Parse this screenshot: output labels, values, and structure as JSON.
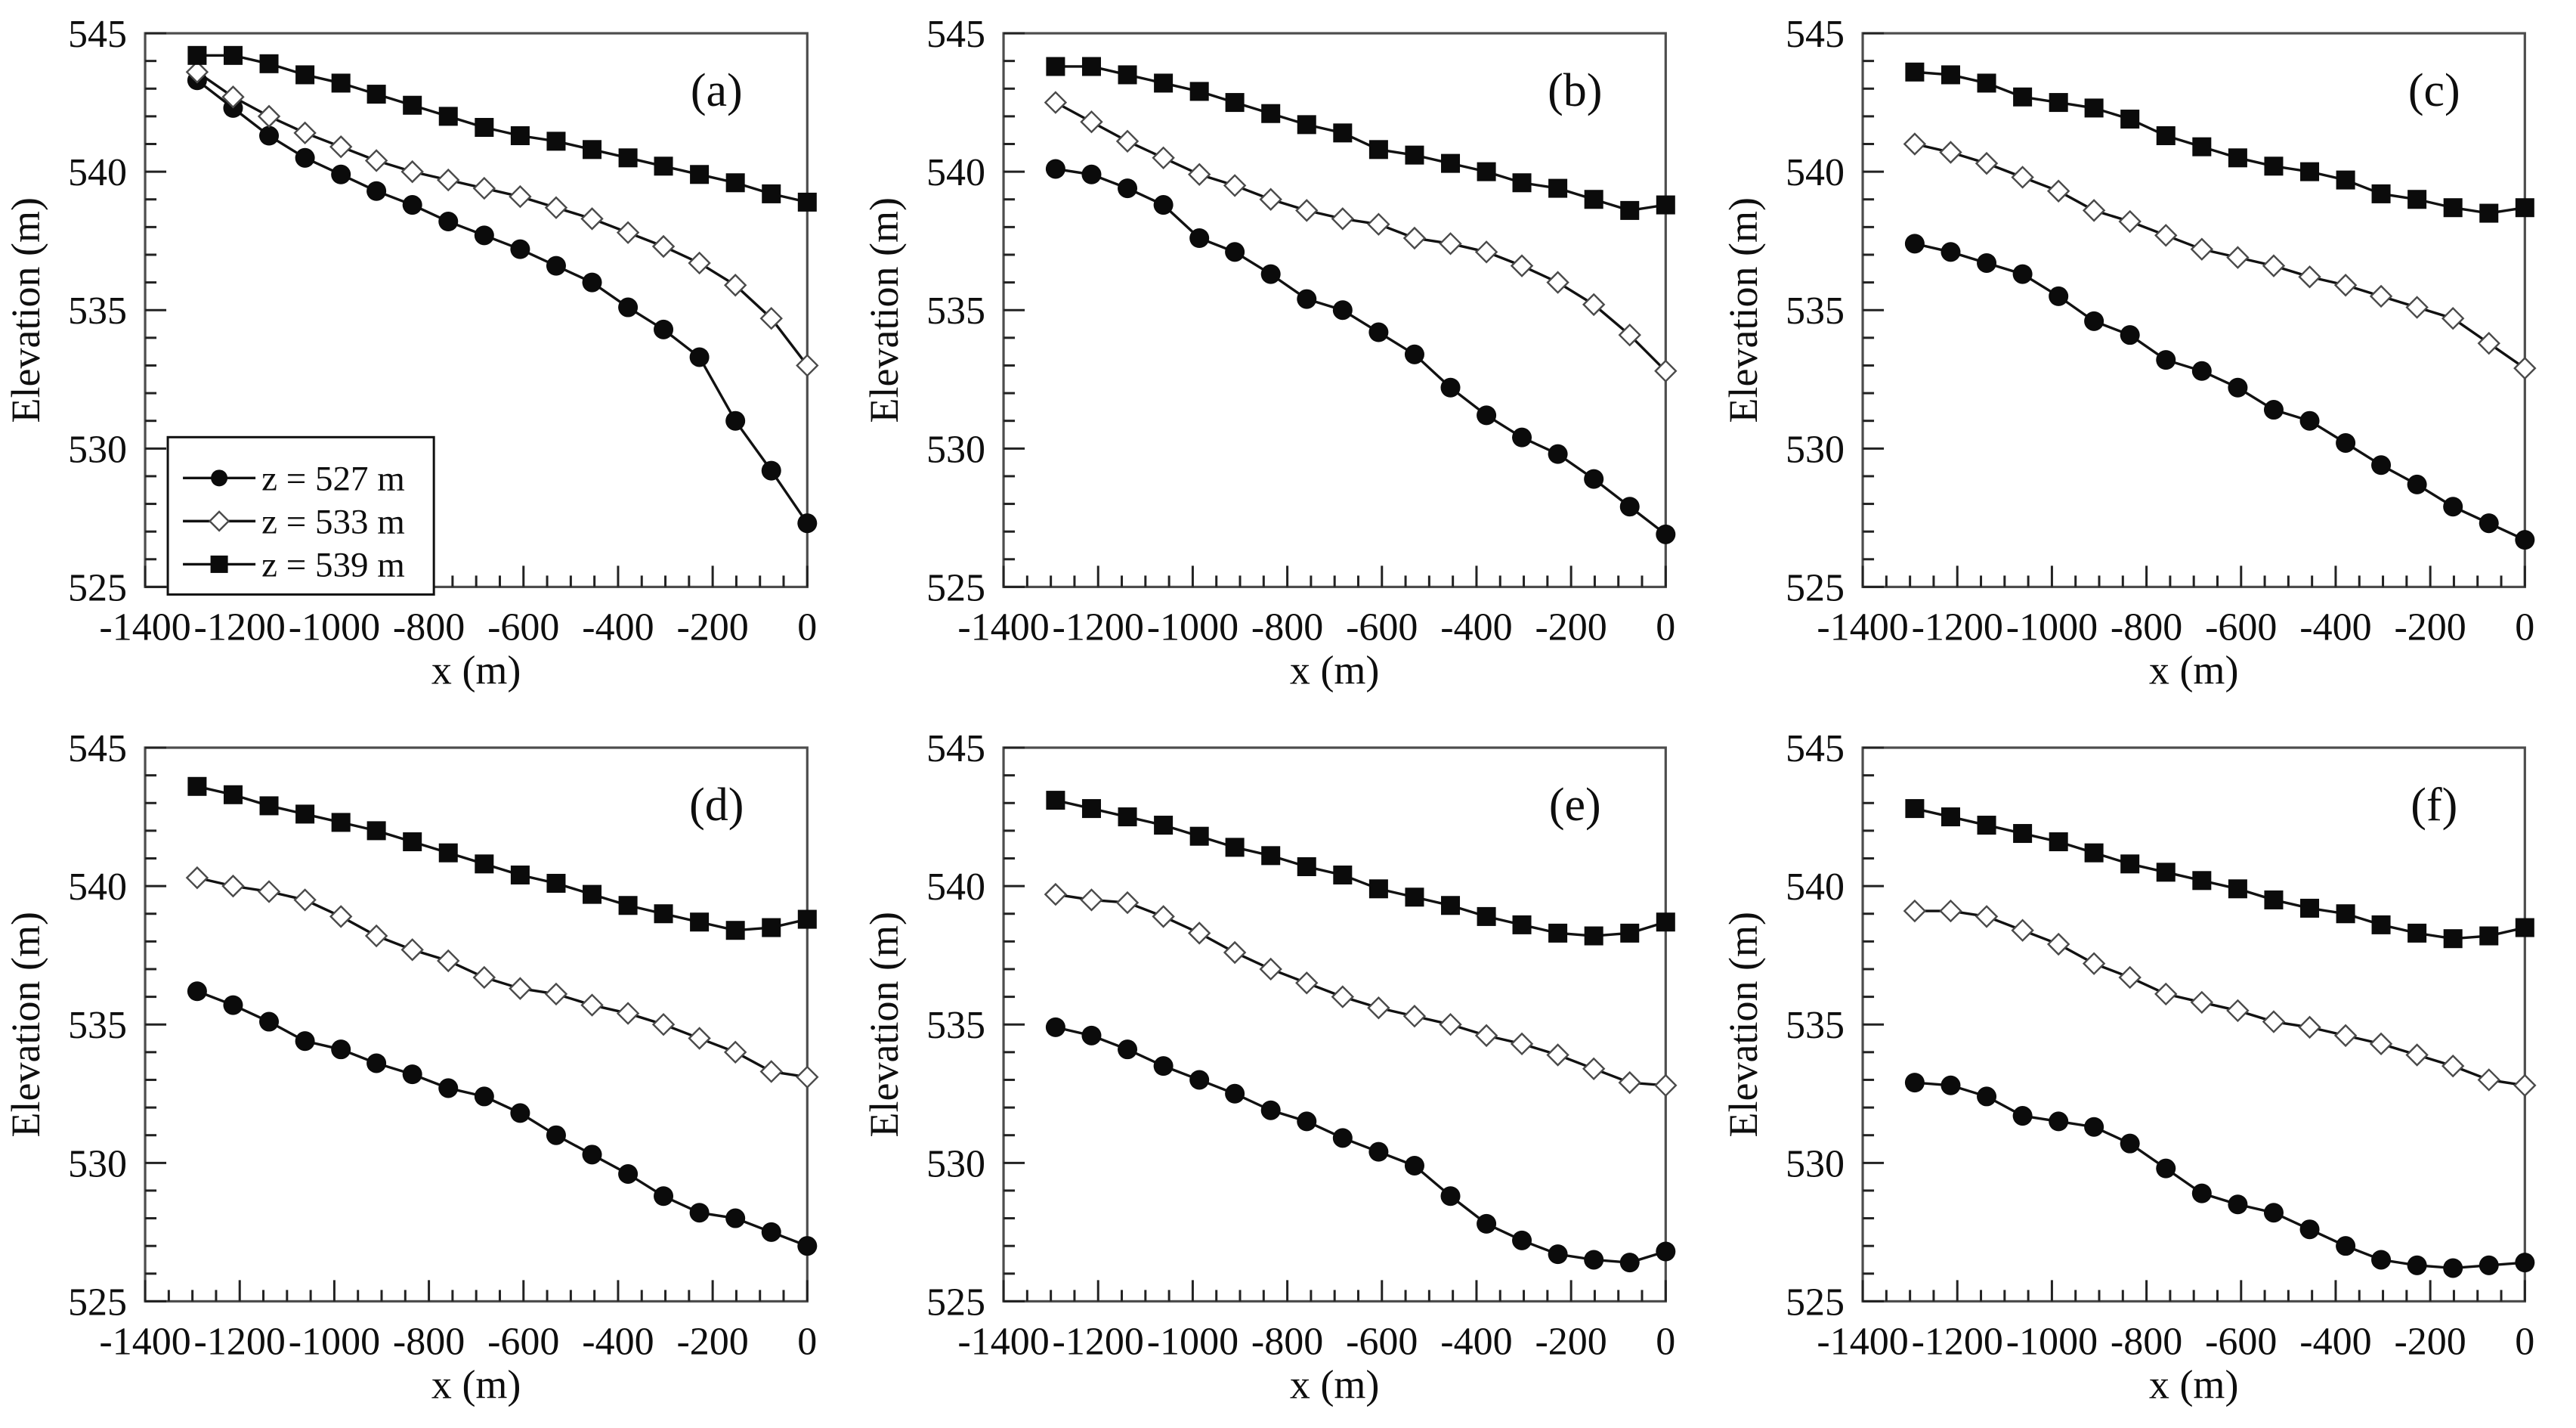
{
  "figure": {
    "xlabel": "x (m)",
    "ylabel": "Elevation (m)",
    "x_range": [
      -1400,
      0
    ],
    "y_range": [
      525,
      545
    ],
    "x_ticks": [
      -1400,
      -1200,
      -1000,
      -800,
      -600,
      -400,
      -200,
      0
    ],
    "y_ticks": [
      525,
      530,
      535,
      540,
      545
    ],
    "x_minor_step": 50,
    "y_minor_step": 1,
    "grid": "off",
    "legend_position": "lower-left of panel (a) only",
    "line_color": "#111111",
    "marker_fill": "#0b0b0b",
    "diamond_stroke": "#4a4a4a",
    "frame_color": "#4d4d4d",
    "legend": [
      {
        "label": "z = 527 m",
        "marker": "circle"
      },
      {
        "label": "z = 533 m",
        "marker": "diamond"
      },
      {
        "label": "z = 539 m",
        "marker": "square"
      }
    ]
  },
  "chart_data": [
    {
      "type": "line",
      "panel_label": "(a)",
      "show_legend": true,
      "x": [
        -1290,
        -1214,
        -1138,
        -1062,
        -986,
        -911,
        -835,
        -759,
        -683,
        -607,
        -531,
        -455,
        -379,
        -304,
        -228,
        -152,
        -76,
        0
      ],
      "series": [
        {
          "name": "z = 527 m",
          "marker": "circle",
          "values": [
            543.3,
            542.3,
            541.3,
            540.5,
            539.9,
            539.3,
            538.8,
            538.2,
            537.7,
            537.2,
            536.6,
            536.0,
            535.1,
            534.3,
            533.3,
            531.0,
            529.2,
            527.3
          ]
        },
        {
          "name": "z = 533 m",
          "marker": "diamond",
          "values": [
            543.6,
            542.7,
            542.0,
            541.4,
            540.9,
            540.4,
            540.0,
            539.7,
            539.4,
            539.1,
            538.7,
            538.3,
            537.8,
            537.3,
            536.7,
            535.9,
            534.7,
            533.0
          ]
        },
        {
          "name": "z = 539 m",
          "marker": "square",
          "values": [
            544.2,
            544.2,
            543.9,
            543.5,
            543.2,
            542.8,
            542.4,
            542.0,
            541.6,
            541.3,
            541.1,
            540.8,
            540.5,
            540.2,
            539.9,
            539.6,
            539.2,
            538.9
          ]
        }
      ]
    },
    {
      "type": "line",
      "panel_label": "(b)",
      "show_legend": false,
      "x": [
        -1290,
        -1214,
        -1138,
        -1062,
        -986,
        -911,
        -835,
        -759,
        -683,
        -607,
        -531,
        -455,
        -379,
        -304,
        -228,
        -152,
        -76,
        0
      ],
      "series": [
        {
          "name": "z = 527 m",
          "marker": "circle",
          "values": [
            540.1,
            539.9,
            539.4,
            538.8,
            537.6,
            537.1,
            536.3,
            535.4,
            535.0,
            534.2,
            533.4,
            532.2,
            531.2,
            530.4,
            529.8,
            528.9,
            527.9,
            526.9
          ]
        },
        {
          "name": "z = 533 m",
          "marker": "diamond",
          "values": [
            542.5,
            541.8,
            541.1,
            540.5,
            539.9,
            539.5,
            539.0,
            538.6,
            538.3,
            538.1,
            537.6,
            537.4,
            537.1,
            536.6,
            536.0,
            535.2,
            534.1,
            532.8
          ]
        },
        {
          "name": "z = 539 m",
          "marker": "square",
          "values": [
            543.8,
            543.8,
            543.5,
            543.2,
            542.9,
            542.5,
            542.1,
            541.7,
            541.4,
            540.8,
            540.6,
            540.3,
            540.0,
            539.6,
            539.4,
            539.0,
            538.6,
            538.8
          ]
        }
      ]
    },
    {
      "type": "line",
      "panel_label": "(c)",
      "show_legend": false,
      "x": [
        -1290,
        -1214,
        -1138,
        -1062,
        -986,
        -911,
        -835,
        -759,
        -683,
        -607,
        -531,
        -455,
        -379,
        -304,
        -228,
        -152,
        -76,
        0
      ],
      "series": [
        {
          "name": "z = 527 m",
          "marker": "circle",
          "values": [
            537.4,
            537.1,
            536.7,
            536.3,
            535.5,
            534.6,
            534.1,
            533.2,
            532.8,
            532.2,
            531.4,
            531.0,
            530.2,
            529.4,
            528.7,
            527.9,
            527.3,
            526.7
          ]
        },
        {
          "name": "z = 533 m",
          "marker": "diamond",
          "values": [
            541.0,
            540.7,
            540.3,
            539.8,
            539.3,
            538.6,
            538.2,
            537.7,
            537.2,
            536.9,
            536.6,
            536.2,
            535.9,
            535.5,
            535.1,
            534.7,
            533.8,
            532.9
          ]
        },
        {
          "name": "z = 539 m",
          "marker": "square",
          "values": [
            543.6,
            543.5,
            543.2,
            542.7,
            542.5,
            542.3,
            541.9,
            541.3,
            540.9,
            540.5,
            540.2,
            540.0,
            539.7,
            539.2,
            539.0,
            538.7,
            538.5,
            538.7
          ]
        }
      ]
    },
    {
      "type": "line",
      "panel_label": "(d)",
      "show_legend": false,
      "x": [
        -1290,
        -1214,
        -1138,
        -1062,
        -986,
        -911,
        -835,
        -759,
        -683,
        -607,
        -531,
        -455,
        -379,
        -304,
        -228,
        -152,
        -76,
        0
      ],
      "series": [
        {
          "name": "z = 527 m",
          "marker": "circle",
          "values": [
            536.2,
            535.7,
            535.1,
            534.4,
            534.1,
            533.6,
            533.2,
            532.7,
            532.4,
            531.8,
            531.0,
            530.3,
            529.6,
            528.8,
            528.2,
            528.0,
            527.5,
            527.0
          ]
        },
        {
          "name": "z = 533 m",
          "marker": "diamond",
          "values": [
            540.3,
            540.0,
            539.8,
            539.5,
            538.9,
            538.2,
            537.7,
            537.3,
            536.7,
            536.3,
            536.1,
            535.7,
            535.4,
            535.0,
            534.5,
            534.0,
            533.3,
            533.1
          ]
        },
        {
          "name": "z = 539 m",
          "marker": "square",
          "values": [
            543.6,
            543.3,
            542.9,
            542.6,
            542.3,
            542.0,
            541.6,
            541.2,
            540.8,
            540.4,
            540.1,
            539.7,
            539.3,
            539.0,
            538.7,
            538.4,
            538.5,
            538.8
          ]
        }
      ]
    },
    {
      "type": "line",
      "panel_label": "(e)",
      "show_legend": false,
      "x": [
        -1290,
        -1214,
        -1138,
        -1062,
        -986,
        -911,
        -835,
        -759,
        -683,
        -607,
        -531,
        -455,
        -379,
        -304,
        -228,
        -152,
        -76,
        0
      ],
      "series": [
        {
          "name": "z = 527 m",
          "marker": "circle",
          "values": [
            534.9,
            534.6,
            534.1,
            533.5,
            533.0,
            532.5,
            531.9,
            531.5,
            530.9,
            530.4,
            529.9,
            528.8,
            527.8,
            527.2,
            526.7,
            526.5,
            526.4,
            526.8
          ]
        },
        {
          "name": "z = 533 m",
          "marker": "diamond",
          "values": [
            539.7,
            539.5,
            539.4,
            538.9,
            538.3,
            537.6,
            537.0,
            536.5,
            536.0,
            535.6,
            535.3,
            535.0,
            534.6,
            534.3,
            533.9,
            533.4,
            532.9,
            532.8
          ]
        },
        {
          "name": "z = 539 m",
          "marker": "square",
          "values": [
            543.1,
            542.8,
            542.5,
            542.2,
            541.8,
            541.4,
            541.1,
            540.7,
            540.4,
            539.9,
            539.6,
            539.3,
            538.9,
            538.6,
            538.3,
            538.2,
            538.3,
            538.7
          ]
        }
      ]
    },
    {
      "type": "line",
      "panel_label": "(f)",
      "show_legend": false,
      "x": [
        -1290,
        -1214,
        -1138,
        -1062,
        -986,
        -911,
        -835,
        -759,
        -683,
        -607,
        -531,
        -455,
        -379,
        -304,
        -228,
        -152,
        -76,
        0
      ],
      "series": [
        {
          "name": "z = 527 m",
          "marker": "circle",
          "values": [
            532.9,
            532.8,
            532.4,
            531.7,
            531.5,
            531.3,
            530.7,
            529.8,
            528.9,
            528.5,
            528.2,
            527.6,
            527.0,
            526.5,
            526.3,
            526.2,
            526.3,
            526.4
          ]
        },
        {
          "name": "z = 533 m",
          "marker": "diamond",
          "values": [
            539.1,
            539.1,
            538.9,
            538.4,
            537.9,
            537.2,
            536.7,
            536.1,
            535.8,
            535.5,
            535.1,
            534.9,
            534.6,
            534.3,
            533.9,
            533.5,
            533.0,
            532.8
          ]
        },
        {
          "name": "z = 539 m",
          "marker": "square",
          "values": [
            542.8,
            542.5,
            542.2,
            541.9,
            541.6,
            541.2,
            540.8,
            540.5,
            540.2,
            539.9,
            539.5,
            539.2,
            539.0,
            538.6,
            538.3,
            538.1,
            538.2,
            538.5
          ]
        }
      ]
    }
  ]
}
